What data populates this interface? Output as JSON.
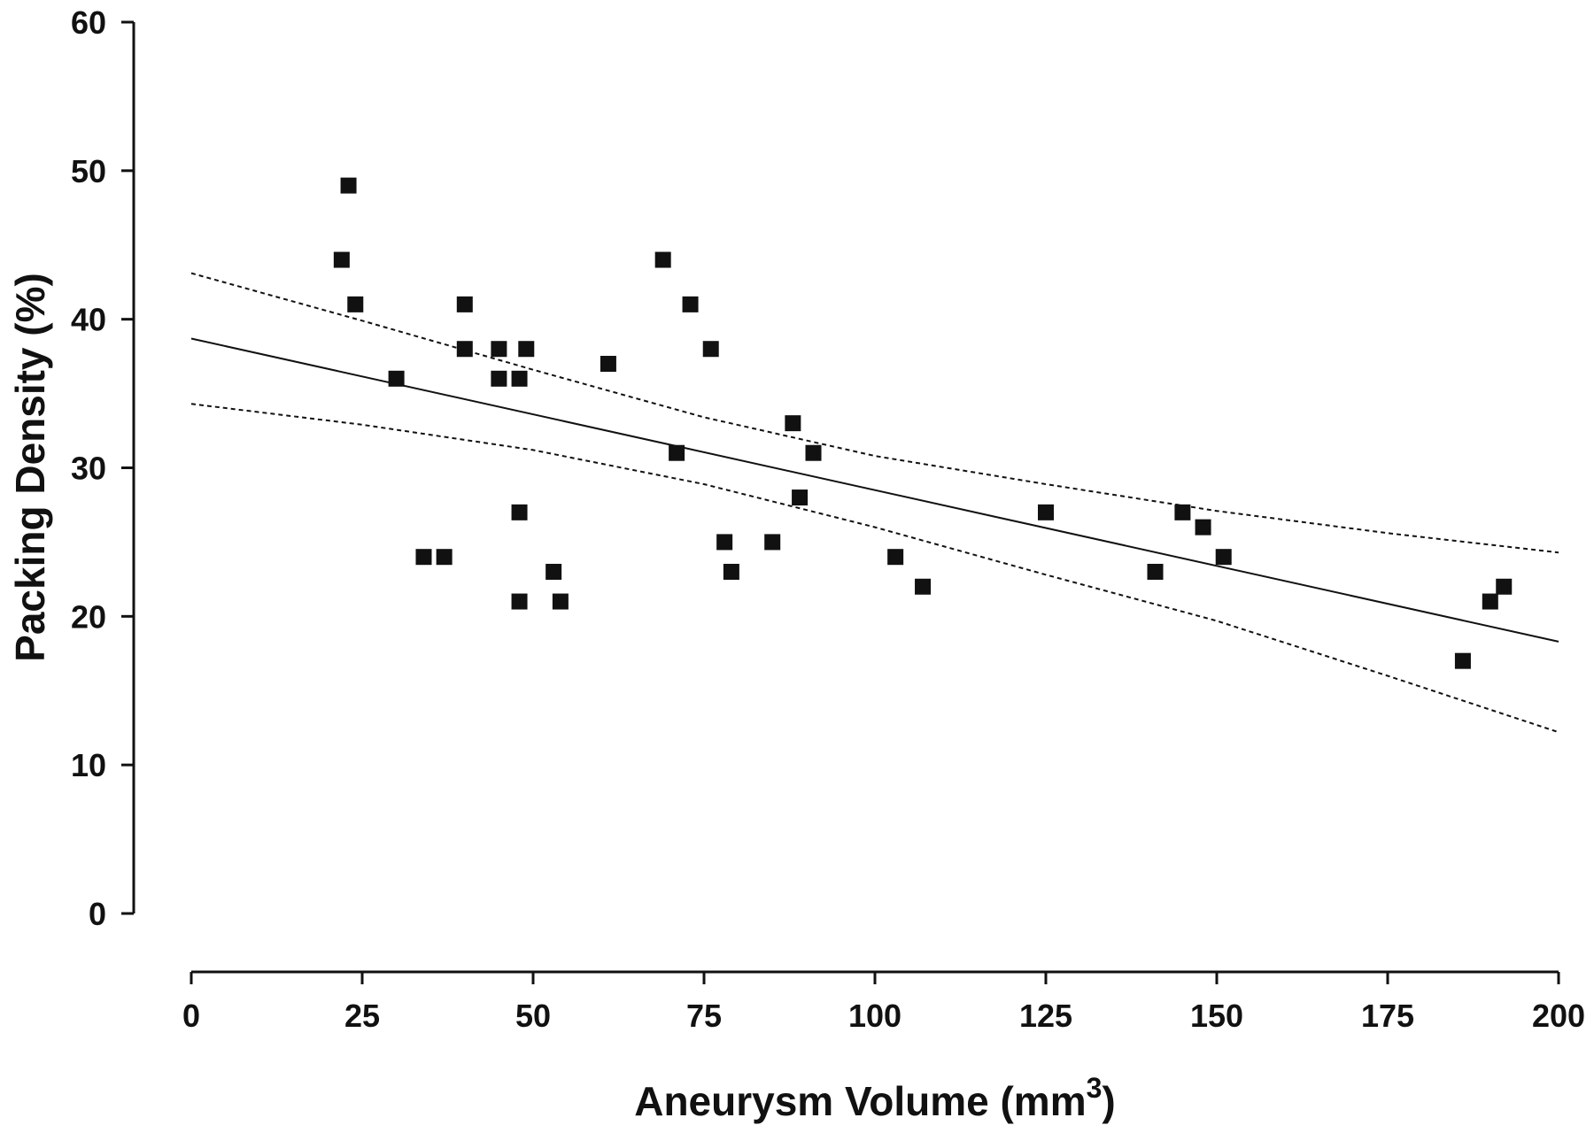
{
  "chart_data": {
    "type": "scatter",
    "title": "",
    "xlabel": "Aneurysm Volume (mm",
    "xlabel_superscript": "3",
    "xlabel_suffix": ")",
    "ylabel": "Packing Density (%)",
    "xlim": [
      0,
      200
    ],
    "ylim": [
      0,
      60
    ],
    "xticks": [
      "0",
      "25",
      "50",
      "75",
      "100",
      "125",
      "150",
      "175",
      "200"
    ],
    "yticks": [
      "0",
      "10",
      "20",
      "30",
      "40",
      "50",
      "60"
    ],
    "grid": false,
    "legend": "none",
    "series": [
      {
        "kind": "points",
        "marker": "square",
        "color": "#111111",
        "points": [
          [
            22,
            44
          ],
          [
            23,
            49
          ],
          [
            24,
            41
          ],
          [
            30,
            36
          ],
          [
            34,
            24
          ],
          [
            37,
            24
          ],
          [
            40,
            41
          ],
          [
            40,
            38
          ],
          [
            45,
            38
          ],
          [
            45,
            36
          ],
          [
            48,
            36
          ],
          [
            48,
            27
          ],
          [
            48,
            21
          ],
          [
            49,
            38
          ],
          [
            53,
            23
          ],
          [
            54,
            21
          ],
          [
            61,
            37
          ],
          [
            69,
            44
          ],
          [
            71,
            31
          ],
          [
            73,
            41
          ],
          [
            76,
            38
          ],
          [
            78,
            25
          ],
          [
            79,
            23
          ],
          [
            85,
            25
          ],
          [
            88,
            33
          ],
          [
            89,
            28
          ],
          [
            91,
            31
          ],
          [
            103,
            24
          ],
          [
            107,
            22
          ],
          [
            125,
            27
          ],
          [
            141,
            23
          ],
          [
            145,
            27
          ],
          [
            148,
            26
          ],
          [
            151,
            24
          ],
          [
            186,
            17
          ],
          [
            190,
            21
          ],
          [
            192,
            22
          ]
        ]
      },
      {
        "kind": "fit",
        "style": "solid",
        "color": "#111111",
        "x": [
          0,
          200
        ],
        "y": [
          38.7,
          18.3
        ]
      },
      {
        "kind": "upper-ci",
        "style": "dotted",
        "color": "#111111",
        "x": [
          0,
          25,
          50,
          75,
          100,
          125,
          150,
          175,
          200
        ],
        "y": [
          43.1,
          39.9,
          36.6,
          33.4,
          30.8,
          28.9,
          27.1,
          25.6,
          24.3
        ]
      },
      {
        "kind": "lower-ci",
        "style": "dotted",
        "color": "#111111",
        "x": [
          0,
          25,
          50,
          75,
          100,
          125,
          150,
          175,
          200
        ],
        "y": [
          34.3,
          32.9,
          31.2,
          28.9,
          26.0,
          22.8,
          19.7,
          16.0,
          12.2
        ]
      }
    ]
  }
}
